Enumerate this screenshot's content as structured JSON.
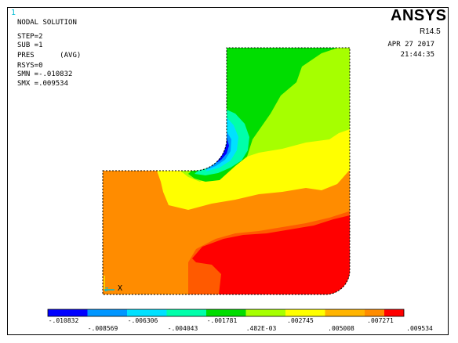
{
  "window_number": "1",
  "info_lines": [
    "NODAL SOLUTION",
    "STEP=2",
    "SUB =1",
    "PRES      (AVG)",
    "RSYS=0",
    "SMN =-.010832",
    "SMX =.009534"
  ],
  "brand": "ANSYS",
  "release": "R14.5",
  "date": "APR 27 2017",
  "time": "21:44:35",
  "axis_label": "X",
  "legend": {
    "labels_top": [
      "-.010832",
      "-.006306",
      "-.001781",
      ".002745",
      ".007271"
    ],
    "labels_bottom": [
      "-.008569",
      "-.004043",
      ".482E-03",
      ".005008",
      ".009534"
    ],
    "colors": [
      "#0000ff",
      "#0096ff",
      "#00e1ff",
      "#00ffaa",
      "#00dd00",
      "#a6ff00",
      "#ffff00",
      "#ffb400",
      "#ff8c00",
      "#ff0000"
    ]
  }
}
